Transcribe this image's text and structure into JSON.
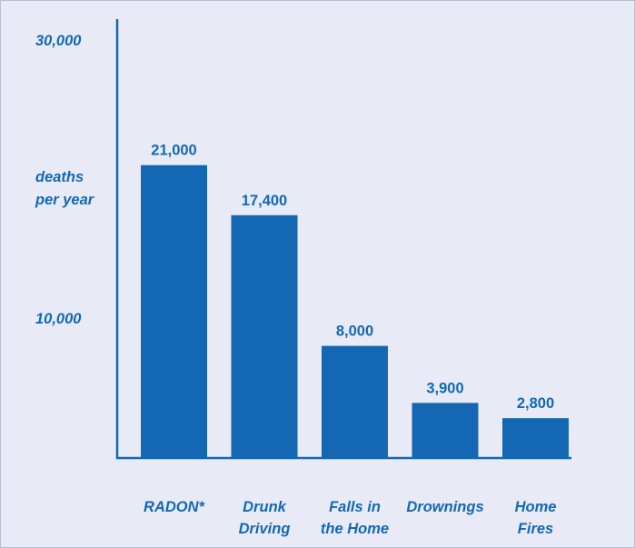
{
  "chart_data": {
    "type": "bar",
    "categories": [
      [
        "RADON*"
      ],
      [
        "Drunk",
        "Driving"
      ],
      [
        "Falls in",
        "the Home"
      ],
      [
        "Drownings"
      ],
      [
        "Home",
        "Fires"
      ]
    ],
    "values": [
      21000,
      17400,
      8000,
      3900,
      2800
    ],
    "data_labels": [
      "21,000",
      "17,400",
      "8,000",
      "3,900",
      "2,800"
    ],
    "yticks": [
      {
        "value": 30000,
        "label": "30,000"
      },
      {
        "value": 10000,
        "label": "10,000"
      }
    ],
    "ylabel": [
      "deaths",
      "per year"
    ],
    "ylim": [
      0,
      30000
    ],
    "grid": false,
    "colors": {
      "bar": "#1468b3",
      "axis": "#1468b3",
      "text": "#1468b3",
      "background": "#e8ebf6"
    }
  }
}
